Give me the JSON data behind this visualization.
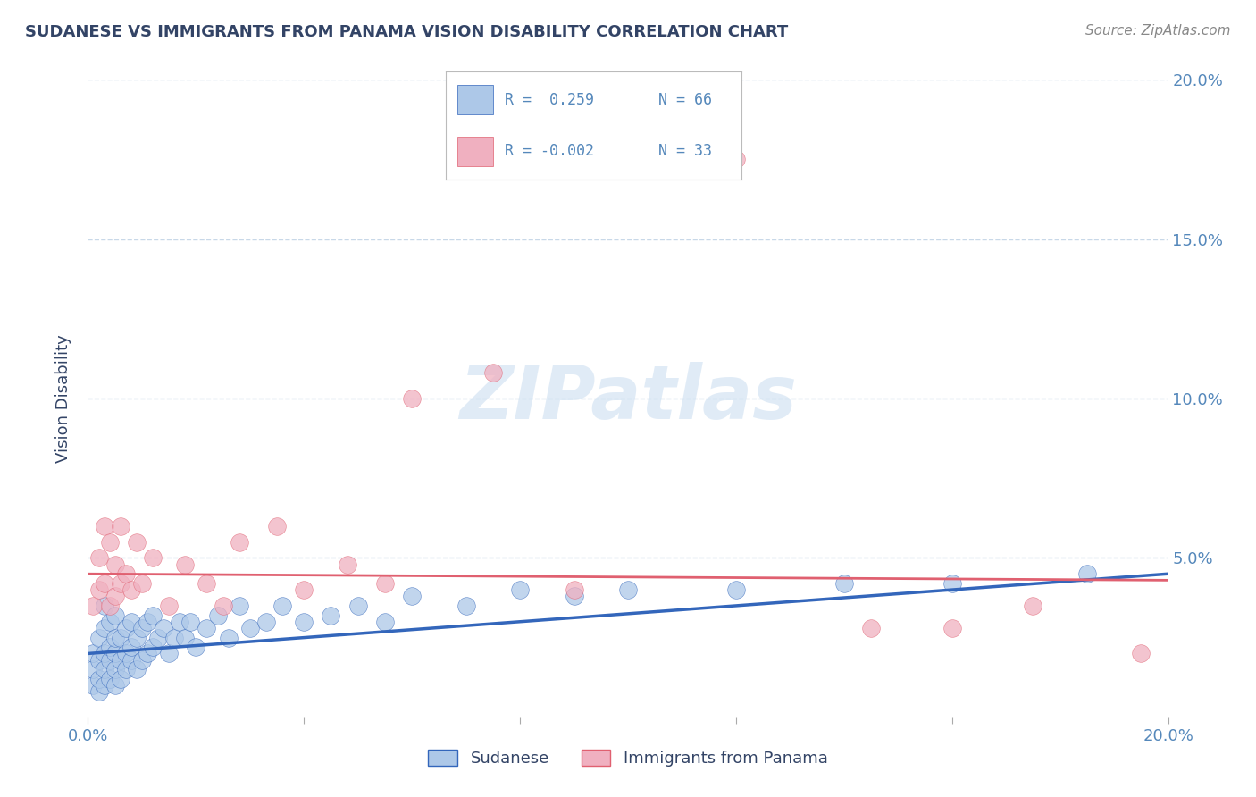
{
  "title": "SUDANESE VS IMMIGRANTS FROM PANAMA VISION DISABILITY CORRELATION CHART",
  "source": "Source: ZipAtlas.com",
  "ylabel": "Vision Disability",
  "xlim": [
    0.0,
    0.2
  ],
  "ylim": [
    0.0,
    0.2
  ],
  "xticks": [
    0.0,
    0.04,
    0.08,
    0.12,
    0.16,
    0.2
  ],
  "yticks": [
    0.0,
    0.05,
    0.1,
    0.15,
    0.2
  ],
  "xticklabels": [
    "0.0%",
    "",
    "",
    "",
    "",
    "20.0%"
  ],
  "yticklabels_right": [
    "",
    "5.0%",
    "10.0%",
    "15.0%",
    "20.0%"
  ],
  "sudanese_color": "#adc8e8",
  "panama_color": "#f0b0c0",
  "sudanese_line_color": "#3366bb",
  "panama_line_color": "#e06070",
  "legend_R_sudanese": "R =  0.259",
  "legend_N_sudanese": "N = 66",
  "legend_R_panama": "R = -0.002",
  "legend_N_panama": "N = 33",
  "watermark": "ZIPatlas",
  "title_color": "#334466",
  "axis_color": "#5588bb",
  "grid_color": "#c8d8e8",
  "sudanese_x": [
    0.001,
    0.001,
    0.001,
    0.002,
    0.002,
    0.002,
    0.002,
    0.003,
    0.003,
    0.003,
    0.003,
    0.003,
    0.004,
    0.004,
    0.004,
    0.004,
    0.005,
    0.005,
    0.005,
    0.005,
    0.005,
    0.006,
    0.006,
    0.006,
    0.007,
    0.007,
    0.007,
    0.008,
    0.008,
    0.008,
    0.009,
    0.009,
    0.01,
    0.01,
    0.011,
    0.011,
    0.012,
    0.012,
    0.013,
    0.014,
    0.015,
    0.016,
    0.017,
    0.018,
    0.019,
    0.02,
    0.022,
    0.024,
    0.026,
    0.028,
    0.03,
    0.033,
    0.036,
    0.04,
    0.045,
    0.05,
    0.055,
    0.06,
    0.07,
    0.08,
    0.09,
    0.1,
    0.12,
    0.14,
    0.16,
    0.185
  ],
  "sudanese_y": [
    0.01,
    0.015,
    0.02,
    0.008,
    0.012,
    0.018,
    0.025,
    0.01,
    0.015,
    0.02,
    0.028,
    0.035,
    0.012,
    0.018,
    0.022,
    0.03,
    0.01,
    0.015,
    0.02,
    0.025,
    0.032,
    0.012,
    0.018,
    0.025,
    0.015,
    0.02,
    0.028,
    0.018,
    0.022,
    0.03,
    0.015,
    0.025,
    0.018,
    0.028,
    0.02,
    0.03,
    0.022,
    0.032,
    0.025,
    0.028,
    0.02,
    0.025,
    0.03,
    0.025,
    0.03,
    0.022,
    0.028,
    0.032,
    0.025,
    0.035,
    0.028,
    0.03,
    0.035,
    0.03,
    0.032,
    0.035,
    0.03,
    0.038,
    0.035,
    0.04,
    0.038,
    0.04,
    0.04,
    0.042,
    0.042,
    0.045
  ],
  "panama_x": [
    0.001,
    0.002,
    0.002,
    0.003,
    0.003,
    0.004,
    0.004,
    0.005,
    0.005,
    0.006,
    0.006,
    0.007,
    0.008,
    0.009,
    0.01,
    0.012,
    0.015,
    0.018,
    0.022,
    0.025,
    0.028,
    0.035,
    0.04,
    0.048,
    0.055,
    0.06,
    0.075,
    0.09,
    0.12,
    0.145,
    0.16,
    0.175,
    0.195
  ],
  "panama_y": [
    0.035,
    0.04,
    0.05,
    0.042,
    0.06,
    0.035,
    0.055,
    0.038,
    0.048,
    0.042,
    0.06,
    0.045,
    0.04,
    0.055,
    0.042,
    0.05,
    0.035,
    0.048,
    0.042,
    0.035,
    0.055,
    0.06,
    0.04,
    0.048,
    0.042,
    0.1,
    0.108,
    0.04,
    0.175,
    0.028,
    0.028,
    0.035,
    0.02
  ],
  "sudanese_trend_x": [
    0.0,
    0.2
  ],
  "sudanese_trend_y": [
    0.02,
    0.045
  ],
  "panama_trend_x": [
    0.0,
    0.2
  ],
  "panama_trend_y": [
    0.045,
    0.043
  ]
}
